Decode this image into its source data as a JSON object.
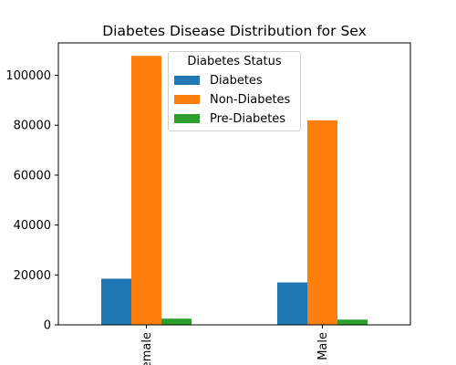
{
  "chart_data": {
    "type": "bar",
    "title": "Diabetes Disease Distribution for Sex",
    "xlabel": "",
    "ylabel": "",
    "categories": [
      "Female",
      "Male"
    ],
    "series": [
      {
        "name": "Diabetes",
        "color": "#1f77b4",
        "values": [
          18500,
          17000
        ]
      },
      {
        "name": "Non-Diabetes",
        "color": "#ff7f0e",
        "values": [
          107800,
          82000
        ]
      },
      {
        "name": "Pre-Diabetes",
        "color": "#2ca02c",
        "values": [
          2500,
          2100
        ]
      }
    ],
    "ylim": [
      0,
      113000
    ],
    "yticks": [
      0,
      20000,
      40000,
      60000,
      80000,
      100000
    ],
    "grid": false,
    "legend": {
      "title": "Diabetes Status",
      "placement": "top-center"
    }
  }
}
